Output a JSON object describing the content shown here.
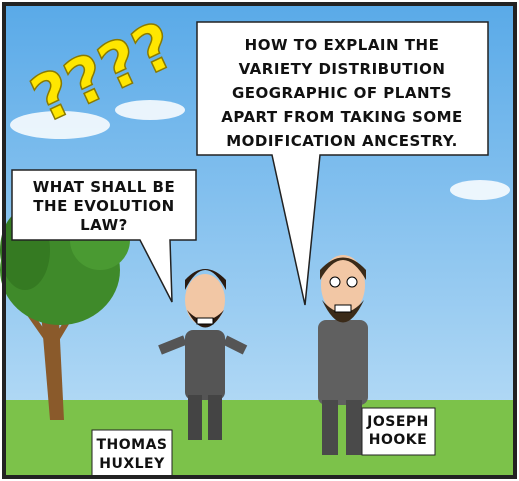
{
  "panel": {
    "exclamation": "????",
    "bubbles": [
      {
        "lines": [
          "HOW TO EXPLAIN THE",
          "VARIETY DISTRIBUTION",
          "GEOGRAPHIC OF PLANTS",
          "APART FROM TAKING SOME",
          "MODIFICATION ANCESTRY."
        ]
      },
      {
        "lines": [
          "WHAT SHALL BE",
          "THE EVOLUTION",
          "LAW?"
        ]
      }
    ],
    "names": [
      {
        "lines": [
          "THOMAS",
          "HUXLEY"
        ]
      },
      {
        "lines": [
          "JOSEPH",
          "HOOKE"
        ]
      }
    ]
  }
}
